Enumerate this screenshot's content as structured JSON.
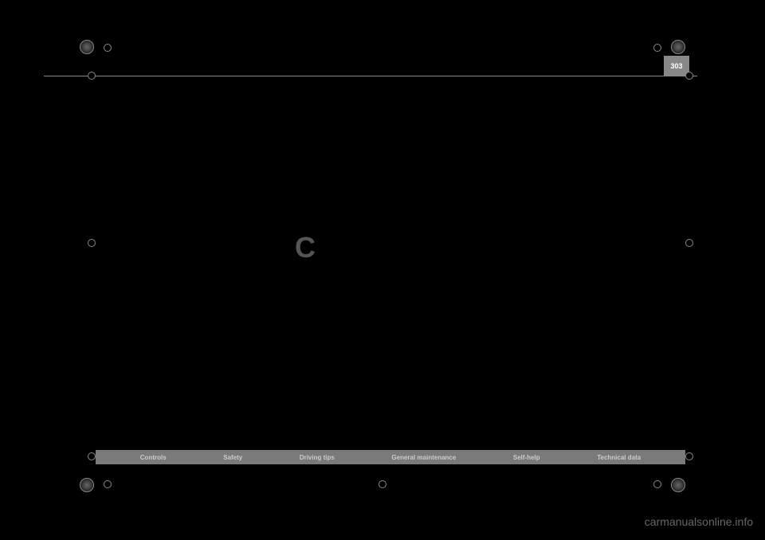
{
  "page_number": "303",
  "drop_cap": "C",
  "footer_nav": {
    "items": [
      "Controls",
      "Safety",
      "Driving tips",
      "General maintenance",
      "Self-help",
      "Technical data"
    ],
    "background_color": "#7a7a7a",
    "text_color": "#cccccc"
  },
  "watermark": "carmanualsonline.info",
  "colors": {
    "background": "#000000",
    "page_num_bg": "#888888",
    "page_num_text": "#ffffff",
    "rule_line": "#888888",
    "drop_cap_color": "#555555"
  }
}
